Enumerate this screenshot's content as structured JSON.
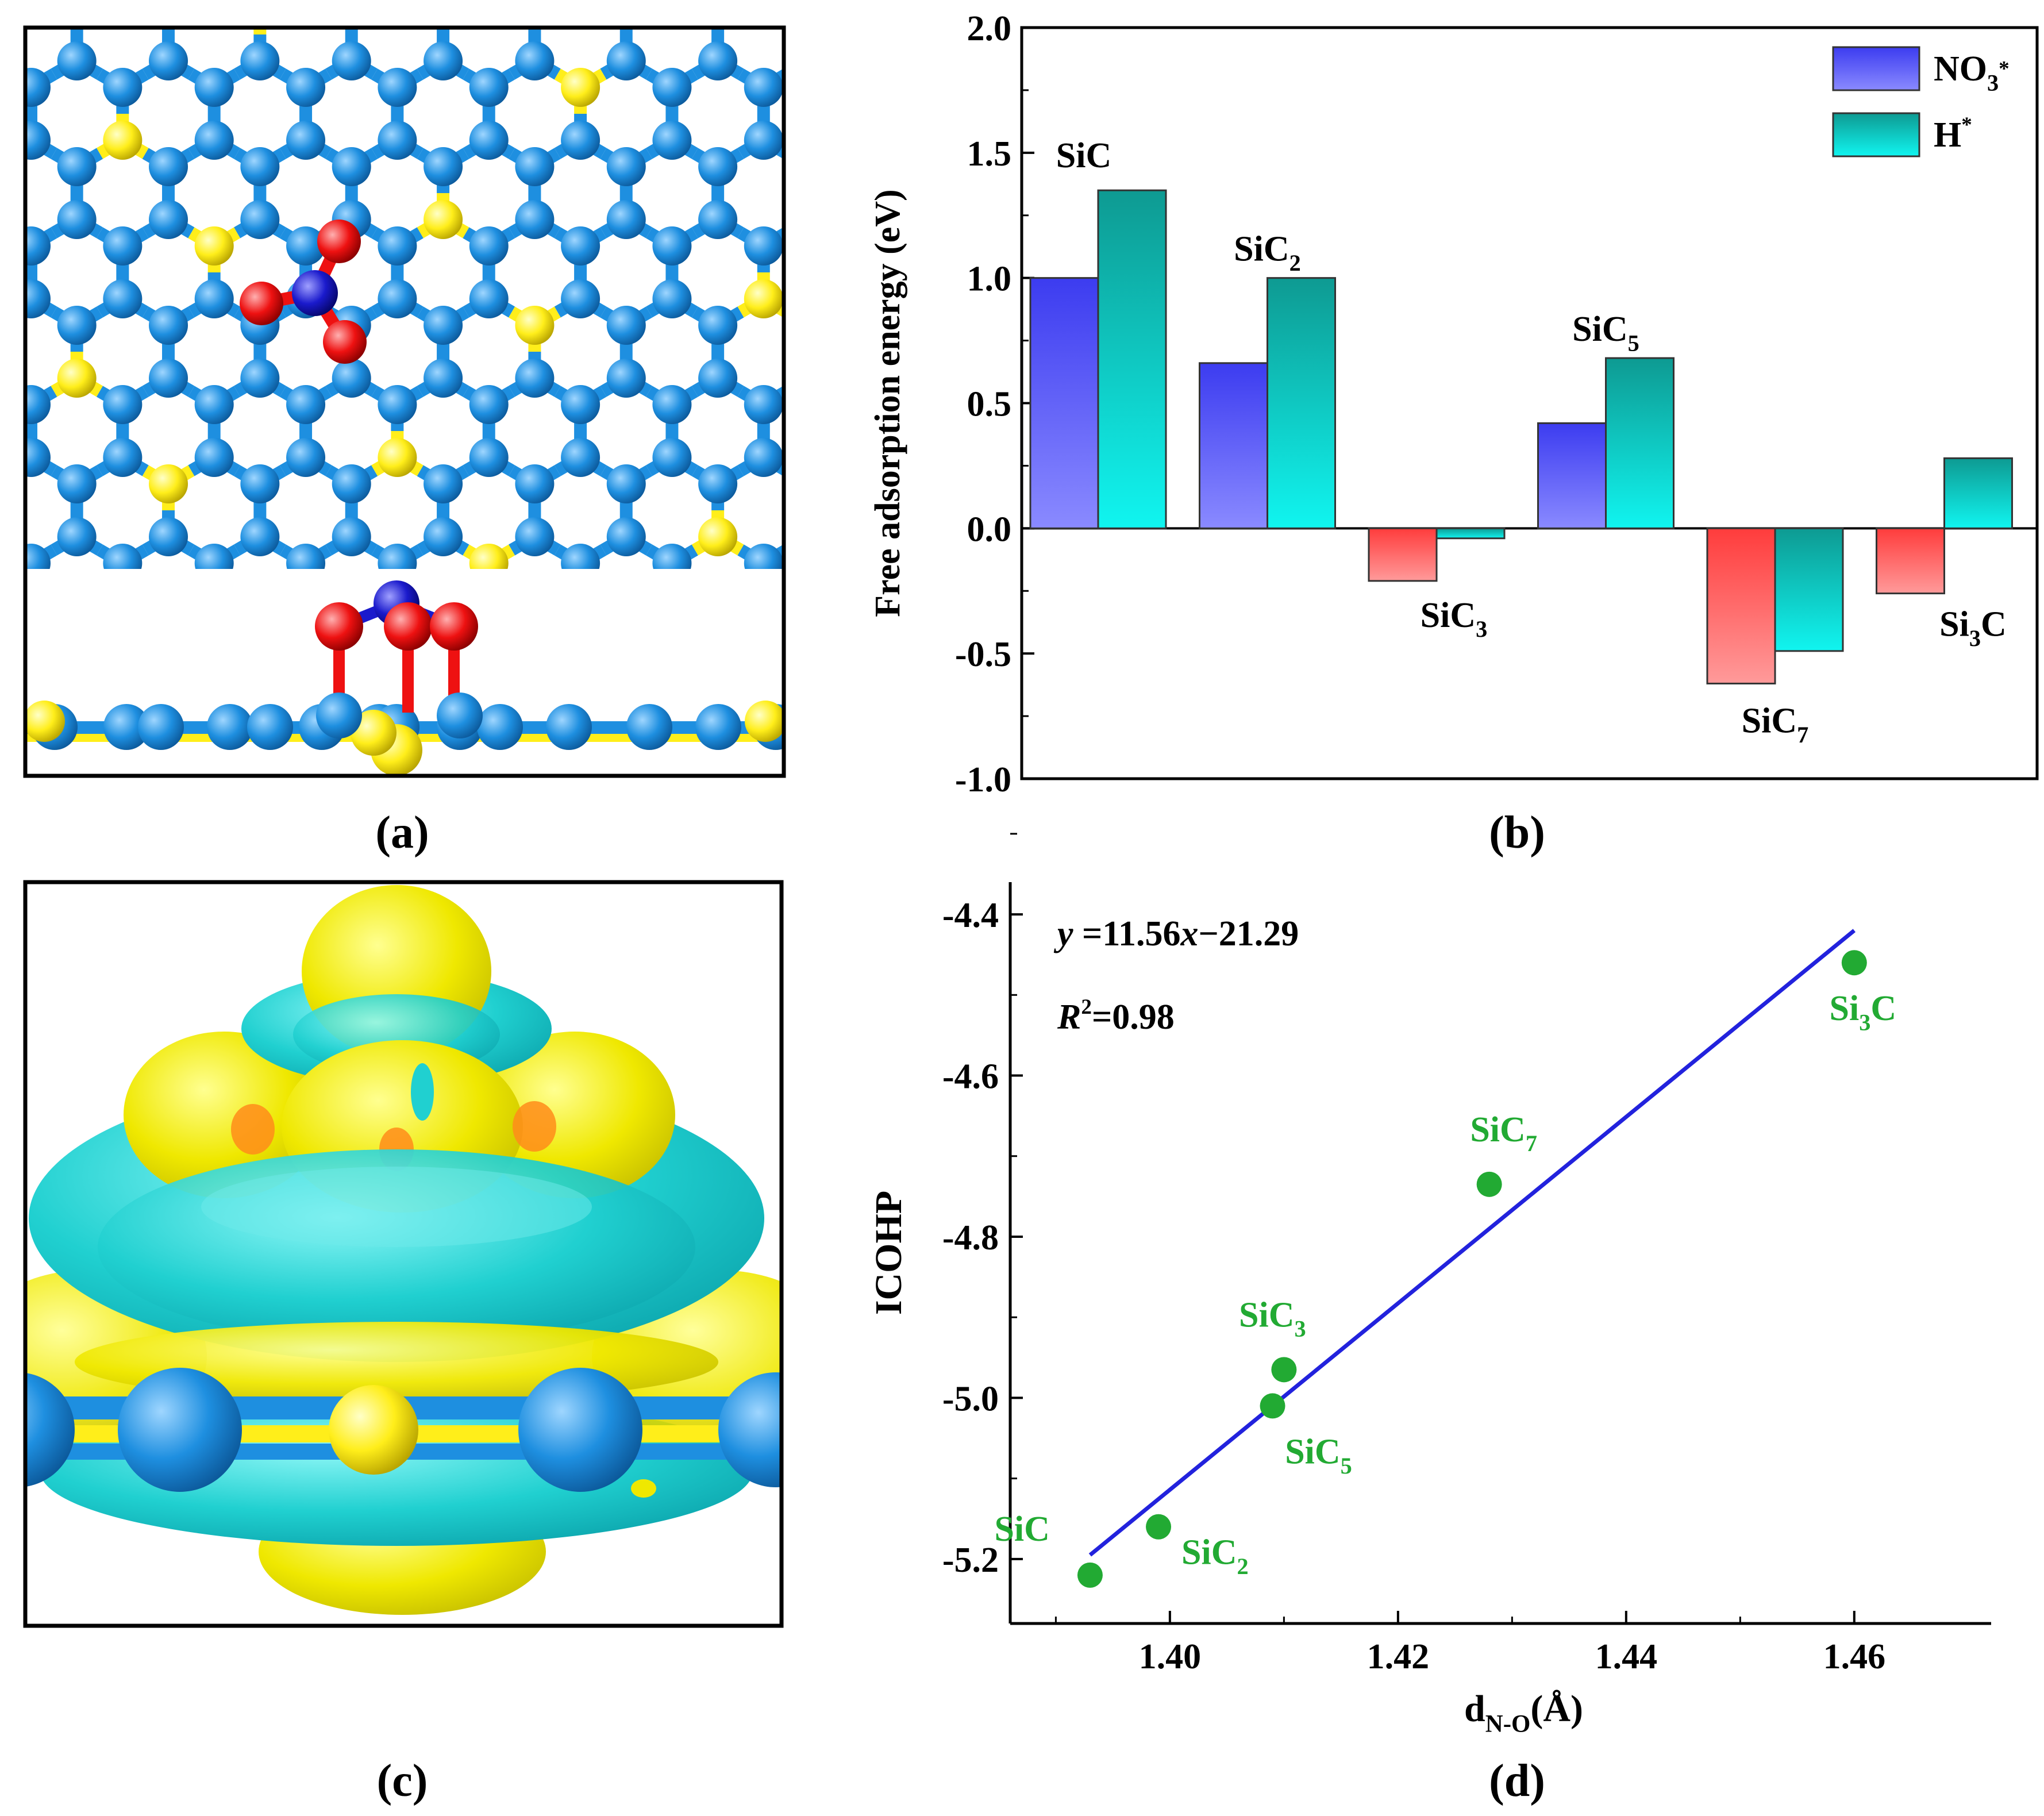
{
  "panel_labels": {
    "a": "(a)",
    "b": "(b)",
    "c": "(c)",
    "d": "(d)"
  },
  "colors": {
    "carbon": "#1e8fe0",
    "silicon": "#ffee1a",
    "oxygen": "#ee1111",
    "nitrogen": "#1a1acc",
    "isosurface_yellow": "#f2f000",
    "isosurface_cyan": "#1ed0d0",
    "bar_no3_pos": "#5a5aff",
    "bar_no3_neg": "#ff6060",
    "bar_h": "#10c0c0",
    "fit_line": "#2222dd",
    "points": "#22aa33"
  },
  "chart_data": [
    {
      "type": "bar",
      "panel": "(b)",
      "categories": [
        "SiC",
        "SiC2",
        "SiC3",
        "SiC5",
        "SiC7",
        "Si3C"
      ],
      "category_labels": [
        {
          "base": "SiC",
          "sub": ""
        },
        {
          "base": "SiC",
          "sub": "2"
        },
        {
          "base": "SiC",
          "sub": "3"
        },
        {
          "base": "SiC",
          "sub": "5"
        },
        {
          "base": "SiC",
          "sub": "7"
        },
        {
          "base": "Si",
          "sub": "3",
          "tail": "C"
        }
      ],
      "series": [
        {
          "name": "NO3*",
          "label_base": "NO",
          "label_sub": "3",
          "label_sup": "*",
          "values": [
            1.0,
            0.66,
            -0.21,
            0.42,
            -0.62,
            -0.26
          ]
        },
        {
          "name": "H*",
          "label_base": "H",
          "label_sub": "",
          "label_sup": "*",
          "values": [
            1.35,
            1.0,
            -0.04,
            0.68,
            -0.49,
            0.28
          ]
        }
      ],
      "title": "",
      "xlabel": "",
      "ylabel": "Free adsorption energy (eV)",
      "ylim": [
        -1.0,
        2.0
      ],
      "yticks": [
        -1.0,
        -0.5,
        0.0,
        0.5,
        1.0,
        1.5,
        2.0
      ],
      "ytick_labels": [
        "-1.0",
        "-0.5",
        "0.0",
        "0.5",
        "1.0",
        "1.5",
        "2.0"
      ],
      "legend_position": "top-right"
    },
    {
      "type": "scatter",
      "panel": "(d)",
      "points": [
        {
          "x": 1.393,
          "y": -5.22,
          "label_base": "SiC",
          "label_sub": "",
          "label_tail": ""
        },
        {
          "x": 1.399,
          "y": -5.16,
          "label_base": "SiC",
          "label_sub": "2",
          "label_tail": ""
        },
        {
          "x": 1.41,
          "y": -4.965,
          "label_base": "SiC",
          "label_sub": "3",
          "label_tail": ""
        },
        {
          "x": 1.409,
          "y": -5.01,
          "label_base": "SiC",
          "label_sub": "5",
          "label_tail": ""
        },
        {
          "x": 1.428,
          "y": -4.735,
          "label_base": "SiC",
          "label_sub": "7",
          "label_tail": ""
        },
        {
          "x": 1.46,
          "y": -4.46,
          "label_base": "Si",
          "label_sub": "3",
          "label_tail": "C"
        }
      ],
      "fit": {
        "x_start": 1.393,
        "y_start": -5.195,
        "x_end": 1.46,
        "y_end": -4.42
      },
      "equation": {
        "y": "y",
        "rest1": "=11.56",
        "x": "x",
        "rest2": "−21.29"
      },
      "r2": {
        "R": "R",
        "sup": "2",
        "rest": "=0.98"
      },
      "xlabel": {
        "base": "d",
        "sub": "N-O",
        "tail": "(Å)"
      },
      "ylabel": "ICOHP",
      "xlim": [
        1.386,
        1.472
      ],
      "ylim": [
        -5.28,
        -4.36
      ],
      "xticks": [
        1.4,
        1.42,
        1.44,
        1.46
      ],
      "xtick_labels": [
        "1.40",
        "1.42",
        "1.44",
        "1.46"
      ],
      "yticks": [
        -5.2,
        -5.0,
        -4.8,
        -4.6,
        -4.4
      ],
      "ytick_labels": [
        "-5.2",
        "-5.0",
        "-4.8",
        "-4.6",
        "-4.4"
      ]
    }
  ]
}
